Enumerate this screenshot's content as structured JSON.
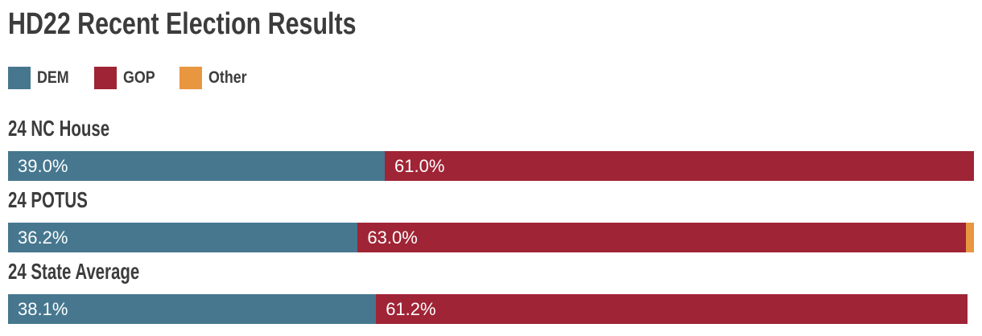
{
  "title": "HD22 Recent Election Results",
  "colors": {
    "dem": "#46778F",
    "gop": "#9F2435",
    "other": "#E89640",
    "heading_text": "#3C3C3C",
    "bar_value_text": "#FFFFFF",
    "background": "#FFFFFF"
  },
  "legend": {
    "items": [
      {
        "label": "DEM",
        "color": "#46778F"
      },
      {
        "label": "GOP",
        "color": "#9F2435"
      },
      {
        "label": "Other",
        "color": "#E89640"
      }
    ]
  },
  "chart_data": {
    "type": "bar",
    "variant": "horizontal-stacked",
    "title": "HD22 Recent Election Results",
    "unit": "percent",
    "xlim": [
      0,
      100
    ],
    "grid": false,
    "legend_position": "top-left",
    "categories": [
      "24 NC House",
      "24 POTUS",
      "24 State Average"
    ],
    "series": [
      {
        "name": "DEM",
        "values": [
          39.0,
          36.2,
          38.1
        ]
      },
      {
        "name": "GOP",
        "values": [
          61.0,
          63.0,
          61.2
        ]
      },
      {
        "name": "Other",
        "values": [
          0.0,
          0.8,
          0.0
        ]
      }
    ],
    "rows": [
      {
        "race": "24 NC House",
        "dem": 39.0,
        "gop": 61.0,
        "other": 0.0,
        "dem_label": "39.0%",
        "gop_label": "61.0%"
      },
      {
        "race": "24 POTUS",
        "dem": 36.2,
        "gop": 63.0,
        "other": 0.8,
        "dem_label": "36.2%",
        "gop_label": "63.0%"
      },
      {
        "race": "24 State Average",
        "dem": 38.1,
        "gop": 61.2,
        "other": 0.0,
        "dem_label": "38.1%",
        "gop_label": "61.2%"
      }
    ]
  }
}
